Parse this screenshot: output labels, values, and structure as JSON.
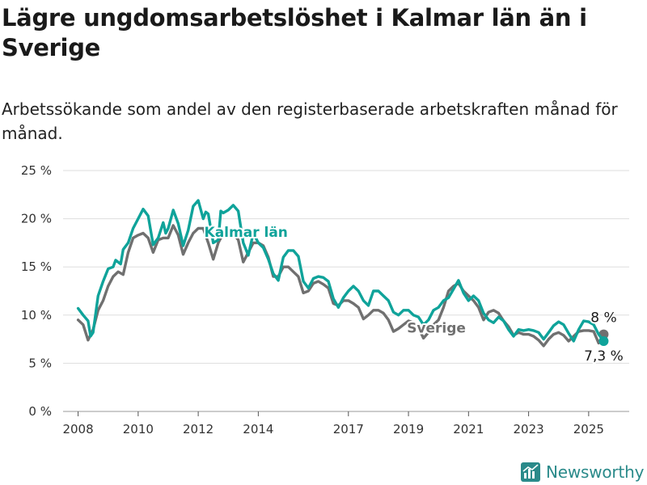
{
  "title": "Lägre ungdomsarbetslöshet i Kalmar län än i Sverige",
  "subtitle": "Arbetssökande som andel av den registerbaserade arbetskraften månad för månad.",
  "brand": "Newsworthy",
  "colors": {
    "kalmar": "#0fa39a",
    "sverige": "#707070",
    "grid": "#dedede",
    "text": "#1a1a1a"
  },
  "chart_data": {
    "type": "line",
    "ylim": [
      0,
      25
    ],
    "y_ticks": [
      0,
      5,
      10,
      15,
      20,
      25
    ],
    "y_tick_labels": [
      "0 %",
      "5 %",
      "10 %",
      "15 %",
      "20 %",
      "25 %"
    ],
    "x_ticks": [
      2008,
      2010,
      2012,
      2014,
      2017,
      2019,
      2021,
      2023,
      2025
    ],
    "x_tick_labels": [
      "2008",
      "2010",
      "2012",
      "2014",
      "2017",
      "2019",
      "2021",
      "2023",
      "2025"
    ],
    "series": [
      {
        "name": "Kalmar län",
        "end_label": "7,3 %",
        "points": [
          [
            "2008-01",
            10.7
          ],
          [
            "2008-03",
            10.0
          ],
          [
            "2008-05",
            9.4
          ],
          [
            "2008-06",
            7.8
          ],
          [
            "2008-07",
            8.2
          ],
          [
            "2008-09",
            12.0
          ],
          [
            "2008-11",
            13.5
          ],
          [
            "2009-01",
            14.8
          ],
          [
            "2009-03",
            15.0
          ],
          [
            "2009-04",
            15.7
          ],
          [
            "2009-06",
            15.3
          ],
          [
            "2009-07",
            16.8
          ],
          [
            "2009-09",
            17.5
          ],
          [
            "2009-11",
            19.0
          ],
          [
            "2010-01",
            20.0
          ],
          [
            "2010-03",
            21.0
          ],
          [
            "2010-05",
            20.3
          ],
          [
            "2010-07",
            17.3
          ],
          [
            "2010-09",
            18.0
          ],
          [
            "2010-11",
            19.6
          ],
          [
            "2010-12",
            18.5
          ],
          [
            "2011-01",
            19.0
          ],
          [
            "2011-03",
            20.9
          ],
          [
            "2011-05",
            19.5
          ],
          [
            "2011-07",
            17.2
          ],
          [
            "2011-09",
            18.8
          ],
          [
            "2011-11",
            21.3
          ],
          [
            "2012-01",
            21.9
          ],
          [
            "2012-03",
            20.0
          ],
          [
            "2012-04",
            20.7
          ],
          [
            "2012-05",
            20.5
          ],
          [
            "2012-07",
            17.5
          ],
          [
            "2012-09",
            17.8
          ],
          [
            "2012-10",
            20.8
          ],
          [
            "2012-11",
            20.6
          ],
          [
            "2013-01",
            20.9
          ],
          [
            "2013-03",
            21.4
          ],
          [
            "2013-05",
            20.8
          ],
          [
            "2013-07",
            17.5
          ],
          [
            "2013-09",
            16.2
          ],
          [
            "2013-11",
            18.5
          ],
          [
            "2014-01",
            17.5
          ],
          [
            "2014-03",
            17.0
          ],
          [
            "2014-05",
            15.8
          ],
          [
            "2014-07",
            14.3
          ],
          [
            "2014-09",
            13.6
          ],
          [
            "2014-11",
            16.0
          ],
          [
            "2015-01",
            16.7
          ],
          [
            "2015-03",
            16.7
          ],
          [
            "2015-05",
            16.1
          ],
          [
            "2015-07",
            13.5
          ],
          [
            "2015-09",
            12.8
          ],
          [
            "2015-11",
            13.8
          ],
          [
            "2016-01",
            14.0
          ],
          [
            "2016-03",
            13.9
          ],
          [
            "2016-05",
            13.5
          ],
          [
            "2016-07",
            11.7
          ],
          [
            "2016-09",
            10.8
          ],
          [
            "2016-11",
            11.8
          ],
          [
            "2017-01",
            12.5
          ],
          [
            "2017-03",
            13.0
          ],
          [
            "2017-05",
            12.5
          ],
          [
            "2017-07",
            11.5
          ],
          [
            "2017-09",
            11.0
          ],
          [
            "2017-11",
            12.5
          ],
          [
            "2018-01",
            12.5
          ],
          [
            "2018-03",
            12.0
          ],
          [
            "2018-05",
            11.5
          ],
          [
            "2018-07",
            10.3
          ],
          [
            "2018-09",
            10.0
          ],
          [
            "2018-11",
            10.5
          ],
          [
            "2019-01",
            10.5
          ],
          [
            "2019-03",
            10.0
          ],
          [
            "2019-05",
            9.8
          ],
          [
            "2019-07",
            9.0
          ],
          [
            "2019-09",
            9.5
          ],
          [
            "2019-11",
            10.5
          ],
          [
            "2020-01",
            10.8
          ],
          [
            "2020-03",
            11.5
          ],
          [
            "2020-05",
            11.8
          ],
          [
            "2020-07",
            12.7
          ],
          [
            "2020-09",
            13.6
          ],
          [
            "2020-11",
            12.3
          ],
          [
            "2021-01",
            11.5
          ],
          [
            "2021-03",
            12.0
          ],
          [
            "2021-05",
            11.5
          ],
          [
            "2021-07",
            10.2
          ],
          [
            "2021-09",
            9.5
          ],
          [
            "2021-11",
            9.2
          ],
          [
            "2022-01",
            9.8
          ],
          [
            "2022-03",
            9.4
          ],
          [
            "2022-05",
            8.5
          ],
          [
            "2022-07",
            7.8
          ],
          [
            "2022-09",
            8.5
          ],
          [
            "2022-11",
            8.4
          ],
          [
            "2023-01",
            8.5
          ],
          [
            "2023-03",
            8.4
          ],
          [
            "2023-05",
            8.2
          ],
          [
            "2023-07",
            7.5
          ],
          [
            "2023-09",
            8.2
          ],
          [
            "2023-11",
            8.9
          ],
          [
            "2024-01",
            9.3
          ],
          [
            "2024-03",
            9.0
          ],
          [
            "2024-05",
            8.1
          ],
          [
            "2024-07",
            7.3
          ],
          [
            "2024-09",
            8.5
          ],
          [
            "2024-11",
            9.4
          ],
          [
            "2025-01",
            9.3
          ],
          [
            "2025-03",
            9.0
          ],
          [
            "2025-05",
            8.0
          ],
          [
            "2025-07",
            7.3
          ]
        ]
      },
      {
        "name": "Sverige",
        "end_label": "8 %",
        "points": [
          [
            "2008-01",
            9.5
          ],
          [
            "2008-03",
            9.0
          ],
          [
            "2008-05",
            7.4
          ],
          [
            "2008-07",
            8.5
          ],
          [
            "2008-09",
            10.5
          ],
          [
            "2008-11",
            11.5
          ],
          [
            "2009-01",
            13.0
          ],
          [
            "2009-03",
            14.0
          ],
          [
            "2009-05",
            14.5
          ],
          [
            "2009-07",
            14.2
          ],
          [
            "2009-09",
            16.5
          ],
          [
            "2009-11",
            18.0
          ],
          [
            "2010-01",
            18.3
          ],
          [
            "2010-03",
            18.5
          ],
          [
            "2010-05",
            18.0
          ],
          [
            "2010-07",
            16.5
          ],
          [
            "2010-09",
            17.8
          ],
          [
            "2010-11",
            18.0
          ],
          [
            "2011-01",
            18.0
          ],
          [
            "2011-03",
            19.3
          ],
          [
            "2011-05",
            18.3
          ],
          [
            "2011-07",
            16.3
          ],
          [
            "2011-09",
            17.5
          ],
          [
            "2011-11",
            18.5
          ],
          [
            "2012-01",
            19.0
          ],
          [
            "2012-03",
            19.0
          ],
          [
            "2012-05",
            17.5
          ],
          [
            "2012-07",
            15.8
          ],
          [
            "2012-09",
            17.5
          ],
          [
            "2012-11",
            18.5
          ],
          [
            "2013-01",
            18.8
          ],
          [
            "2013-03",
            18.5
          ],
          [
            "2013-05",
            17.8
          ],
          [
            "2013-07",
            15.5
          ],
          [
            "2013-09",
            16.5
          ],
          [
            "2013-11",
            17.5
          ],
          [
            "2014-01",
            17.5
          ],
          [
            "2014-03",
            17.2
          ],
          [
            "2014-05",
            16.0
          ],
          [
            "2014-07",
            14.0
          ],
          [
            "2014-09",
            14.0
          ],
          [
            "2014-11",
            15.0
          ],
          [
            "2015-01",
            15.0
          ],
          [
            "2015-03",
            14.5
          ],
          [
            "2015-05",
            14.0
          ],
          [
            "2015-07",
            12.3
          ],
          [
            "2015-09",
            12.5
          ],
          [
            "2015-11",
            13.3
          ],
          [
            "2016-01",
            13.5
          ],
          [
            "2016-03",
            13.2
          ],
          [
            "2016-05",
            12.8
          ],
          [
            "2016-07",
            11.2
          ],
          [
            "2016-09",
            11.0
          ],
          [
            "2016-11",
            11.5
          ],
          [
            "2017-01",
            11.5
          ],
          [
            "2017-03",
            11.2
          ],
          [
            "2017-05",
            10.8
          ],
          [
            "2017-07",
            9.6
          ],
          [
            "2017-09",
            10.0
          ],
          [
            "2017-11",
            10.5
          ],
          [
            "2018-01",
            10.5
          ],
          [
            "2018-03",
            10.2
          ],
          [
            "2018-05",
            9.5
          ],
          [
            "2018-07",
            8.3
          ],
          [
            "2018-09",
            8.6
          ],
          [
            "2018-11",
            9.0
          ],
          [
            "2019-01",
            9.4
          ],
          [
            "2019-03",
            9.2
          ],
          [
            "2019-05",
            8.7
          ],
          [
            "2019-07",
            7.6
          ],
          [
            "2019-09",
            8.2
          ],
          [
            "2019-11",
            9.0
          ],
          [
            "2020-01",
            9.5
          ],
          [
            "2020-03",
            10.8
          ],
          [
            "2020-05",
            12.5
          ],
          [
            "2020-07",
            13.0
          ],
          [
            "2020-09",
            13.3
          ],
          [
            "2020-11",
            12.5
          ],
          [
            "2021-01",
            12.0
          ],
          [
            "2021-03",
            11.5
          ],
          [
            "2021-05",
            10.8
          ],
          [
            "2021-07",
            9.5
          ],
          [
            "2021-09",
            10.3
          ],
          [
            "2021-11",
            10.5
          ],
          [
            "2022-01",
            10.2
          ],
          [
            "2022-03",
            9.4
          ],
          [
            "2022-05",
            8.8
          ],
          [
            "2022-07",
            7.9
          ],
          [
            "2022-09",
            8.2
          ],
          [
            "2022-11",
            8.0
          ],
          [
            "2023-01",
            8.0
          ],
          [
            "2023-03",
            7.8
          ],
          [
            "2023-05",
            7.4
          ],
          [
            "2023-07",
            6.8
          ],
          [
            "2023-09",
            7.5
          ],
          [
            "2023-11",
            8.0
          ],
          [
            "2024-01",
            8.2
          ],
          [
            "2024-03",
            7.9
          ],
          [
            "2024-05",
            7.3
          ],
          [
            "2024-07",
            7.8
          ],
          [
            "2024-09",
            8.3
          ],
          [
            "2024-11",
            8.4
          ],
          [
            "2025-01",
            8.4
          ],
          [
            "2025-03",
            8.3
          ],
          [
            "2025-05",
            7.1
          ],
          [
            "2025-07",
            8.0
          ]
        ]
      }
    ]
  }
}
